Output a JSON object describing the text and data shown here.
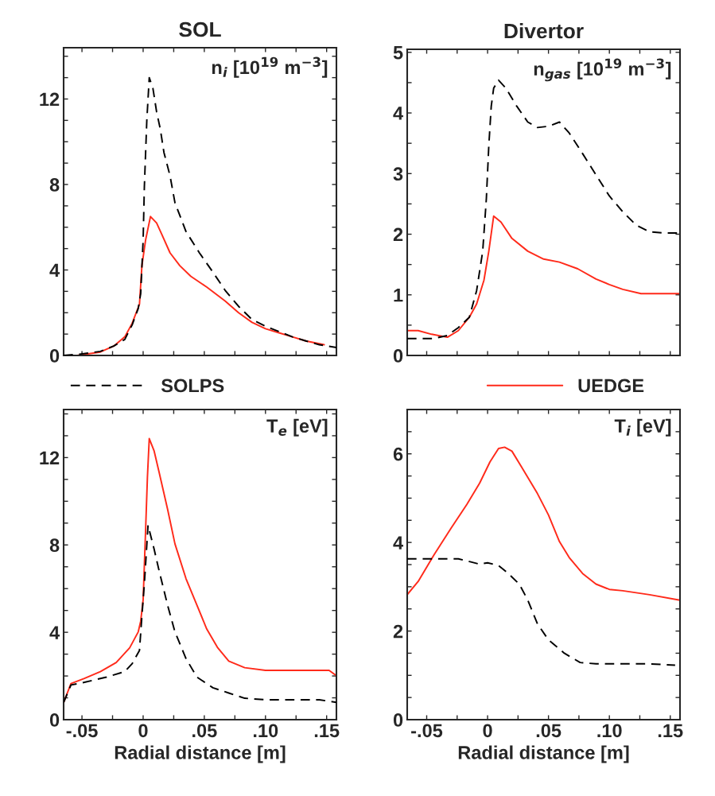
{
  "chart_data": [
    {
      "type": "line",
      "title": "SOL",
      "annotations": [
        "n$_{i}$ [10$^{19}$ m$^{−3}$]"
      ],
      "xlim": [
        -0.065,
        0.158
      ],
      "ylim": [
        0,
        14.4
      ],
      "tick_labels": "y",
      "legend": "bottom",
      "xticks": [
        {
          "value": -0.05,
          "label": null
        },
        {
          "value": -0.025,
          "label": null
        },
        {
          "value": 0,
          "label": null
        },
        {
          "value": 0.025,
          "label": null
        },
        {
          "value": 0.05,
          "label": null
        },
        {
          "value": 0.075,
          "label": null
        },
        {
          "value": 0.1,
          "label": null
        },
        {
          "value": 0.125,
          "label": null
        },
        {
          "value": 0.15,
          "label": null
        }
      ],
      "yticks": [
        0,
        {
          "value": 1,
          "label": null
        },
        {
          "value": 2,
          "label": null
        },
        {
          "value": 3,
          "label": null
        },
        4,
        {
          "value": 5,
          "label": null
        },
        {
          "value": 6,
          "label": null
        },
        {
          "value": 7,
          "label": null
        },
        8,
        {
          "value": 9,
          "label": null
        },
        {
          "value": 10,
          "label": null
        },
        {
          "value": 11,
          "label": null
        },
        12,
        {
          "value": 13,
          "label": null
        },
        {
          "value": 14,
          "label": null
        }
      ],
      "series": [
        {
          "name": "SOLPS",
          "color": "#000000",
          "line_style": "dashed",
          "x": [
            -0.065,
            -0.052,
            -0.035,
            -0.024,
            -0.015,
            -0.009,
            -0.004,
            -0.002,
            0.0,
            0.001,
            0.003,
            0.005,
            0.008,
            0.011,
            0.014,
            0.017,
            0.022,
            0.026,
            0.035,
            0.046,
            0.057,
            0.067,
            0.078,
            0.089,
            0.1,
            0.111,
            0.122,
            0.133,
            0.144,
            0.158
          ],
          "values": [
            0,
            0.06,
            0.19,
            0.44,
            0.75,
            1.43,
            2.2,
            2.9,
            5.4,
            7.9,
            11.0,
            13.0,
            12.5,
            11.4,
            10.6,
            9.5,
            8.4,
            7.15,
            5.8,
            4.8,
            3.9,
            3.05,
            2.3,
            1.68,
            1.37,
            1.12,
            0.87,
            0.68,
            0.5,
            0.37
          ]
        },
        {
          "name": "UEDGE",
          "color": "#ff2a1a",
          "line_style": "solid",
          "x": [
            -0.054,
            -0.035,
            -0.024,
            -0.015,
            -0.009,
            -0.003,
            -0.001,
            0.002,
            0.006,
            0.011,
            0.015,
            0.022,
            0.03,
            0.039,
            0.052,
            0.067,
            0.078,
            0.089,
            0.1,
            0.111,
            0.122,
            0.133,
            0.148
          ],
          "values": [
            0,
            0.16,
            0.44,
            0.87,
            1.5,
            2.4,
            4.2,
            5.4,
            6.5,
            6.2,
            5.7,
            4.8,
            4.2,
            3.7,
            3.2,
            2.55,
            2.0,
            1.55,
            1.25,
            1.06,
            0.87,
            0.68,
            0.5
          ]
        }
      ]
    },
    {
      "type": "line",
      "title": "Divertor",
      "annotations": [
        "n$_{gas}$ [10$^{19}$ m$^{−3}$]"
      ],
      "xlim": [
        -0.066,
        0.158
      ],
      "ylim": [
        0,
        5.05
      ],
      "tick_labels": "y",
      "xticks": [
        {
          "value": -0.05,
          "label": null
        },
        {
          "value": -0.025,
          "label": null
        },
        {
          "value": 0,
          "label": null
        },
        {
          "value": 0.025,
          "label": null
        },
        {
          "value": 0.05,
          "label": null
        },
        {
          "value": 0.075,
          "label": null
        },
        {
          "value": 0.1,
          "label": null
        },
        {
          "value": 0.125,
          "label": null
        },
        {
          "value": 0.15,
          "label": null
        }
      ],
      "yticks": [
        0,
        {
          "value": 0.5,
          "label": null
        },
        1,
        {
          "value": 1.5,
          "label": null
        },
        2,
        {
          "value": 2.5,
          "label": null
        },
        3,
        {
          "value": 3.5,
          "label": null
        },
        4,
        {
          "value": 4.5,
          "label": null
        },
        5
      ],
      "series": [
        {
          "name": "SOLPS",
          "color": "#000000",
          "line_style": "dashed",
          "x": [
            -0.066,
            -0.044,
            -0.033,
            -0.024,
            -0.015,
            -0.009,
            -0.004,
            -0.001,
            0.001,
            0.003,
            0.005,
            0.009,
            0.015,
            0.024,
            0.033,
            0.041,
            0.05,
            0.059,
            0.067,
            0.078,
            0.089,
            0.1,
            0.111,
            0.122,
            0.133,
            0.144,
            0.157
          ],
          "values": [
            0.28,
            0.28,
            0.33,
            0.46,
            0.63,
            1.07,
            1.72,
            2.59,
            3.46,
            4.11,
            4.41,
            4.54,
            4.41,
            4.11,
            3.85,
            3.76,
            3.78,
            3.85,
            3.67,
            3.33,
            2.98,
            2.63,
            2.37,
            2.15,
            2.04,
            2.02,
            2.02
          ]
        },
        {
          "name": "UEDGE",
          "color": "#ff2a1a",
          "line_style": "solid",
          "x": [
            -0.066,
            -0.057,
            -0.046,
            -0.033,
            -0.024,
            -0.015,
            -0.009,
            -0.003,
            0.001,
            0.005,
            0.011,
            0.02,
            0.033,
            0.046,
            0.059,
            0.074,
            0.089,
            0.1,
            0.111,
            0.126,
            0.157
          ],
          "values": [
            0.41,
            0.41,
            0.35,
            0.3,
            0.41,
            0.63,
            0.85,
            1.24,
            1.72,
            2.3,
            2.2,
            1.93,
            1.72,
            1.59,
            1.54,
            1.43,
            1.26,
            1.17,
            1.09,
            1.02,
            1.02
          ]
        }
      ]
    },
    {
      "type": "line",
      "xlabel": "Radial distance [m]",
      "annotations": [
        "T$_{e}$ [eV]"
      ],
      "xlim": [
        -0.065,
        0.158
      ],
      "ylim": [
        0,
        14.2
      ],
      "xticks": [
        {
          "value": -0.05,
          "label": "-.05"
        },
        {
          "value": -0.025,
          "label": null
        },
        0,
        {
          "value": 0.025,
          "label": null
        },
        {
          "value": 0.05,
          "label": ".05"
        },
        {
          "value": 0.075,
          "label": null
        },
        {
          "value": 0.1,
          "label": ".10"
        },
        {
          "value": 0.125,
          "label": null
        },
        {
          "value": 0.15,
          "label": ".15"
        }
      ],
      "yticks": [
        0,
        {
          "value": 1,
          "label": null
        },
        {
          "value": 2,
          "label": null
        },
        {
          "value": 3,
          "label": null
        },
        4,
        {
          "value": 5,
          "label": null
        },
        {
          "value": 6,
          "label": null
        },
        {
          "value": 7,
          "label": null
        },
        8,
        {
          "value": 9,
          "label": null
        },
        {
          "value": 10,
          "label": null
        },
        {
          "value": 11,
          "label": null
        },
        12,
        {
          "value": 13,
          "label": null
        },
        {
          "value": 14,
          "label": null
        }
      ],
      "series": [
        {
          "name": "SOLPS",
          "color": "#000000",
          "line_style": "dashed",
          "x": [
            -0.065,
            -0.059,
            -0.048,
            -0.03,
            -0.015,
            -0.009,
            -0.003,
            -0.001,
            0.001,
            0.004,
            0.009,
            0.013,
            0.02,
            0.026,
            0.035,
            0.044,
            0.057,
            0.07,
            0.083,
            0.1,
            0.122,
            0.144,
            0.158
          ],
          "values": [
            0.79,
            1.59,
            1.71,
            1.95,
            2.2,
            2.56,
            3.17,
            4.76,
            6.22,
            8.9,
            7.8,
            6.83,
            5.24,
            4.02,
            2.8,
            1.95,
            1.46,
            1.22,
            0.98,
            0.91,
            0.91,
            0.91,
            0.79
          ]
        },
        {
          "name": "UEDGE",
          "color": "#ff2a1a",
          "line_style": "solid",
          "x": [
            -0.065,
            -0.059,
            -0.048,
            -0.035,
            -0.022,
            -0.011,
            -0.004,
            -0.002,
            0.0,
            0.002,
            0.0035,
            0.005,
            0.009,
            0.013,
            0.02,
            0.026,
            0.035,
            0.044,
            0.052,
            0.061,
            0.07,
            0.083,
            0.1,
            0.122,
            0.152,
            0.158
          ],
          "values": [
            0.79,
            1.65,
            1.89,
            2.2,
            2.62,
            3.29,
            4.02,
            4.51,
            5.49,
            8.66,
            11.1,
            12.87,
            12.3,
            11.34,
            9.63,
            8.05,
            6.46,
            5.24,
            4.15,
            3.29,
            2.68,
            2.38,
            2.26,
            2.26,
            2.26,
            2.01
          ]
        }
      ]
    },
    {
      "type": "line",
      "xlabel": "Radial distance [m]",
      "annotations": [
        "T$_{i}$ [eV]"
      ],
      "xlim": [
        -0.066,
        0.158
      ],
      "ylim": [
        0,
        7
      ],
      "xticks": [
        {
          "value": -0.05,
          "label": "-.05"
        },
        {
          "value": -0.025,
          "label": null
        },
        0,
        {
          "value": 0.025,
          "label": null
        },
        {
          "value": 0.05,
          "label": ".05"
        },
        {
          "value": 0.075,
          "label": null
        },
        {
          "value": 0.1,
          "label": ".10"
        },
        {
          "value": 0.125,
          "label": null
        },
        {
          "value": 0.15,
          "label": ".15"
        }
      ],
      "yticks": [
        0,
        {
          "value": 0.5,
          "label": null
        },
        {
          "value": 1,
          "label": null
        },
        {
          "value": 1.5,
          "label": null
        },
        2,
        {
          "value": 2.5,
          "label": null
        },
        {
          "value": 3,
          "label": null
        },
        {
          "value": 3.5,
          "label": null
        },
        4,
        {
          "value": 4.5,
          "label": null
        },
        {
          "value": 5,
          "label": null
        },
        {
          "value": 5.5,
          "label": null
        },
        6,
        {
          "value": 6.5,
          "label": null
        }
      ],
      "series": [
        {
          "name": "SOLPS",
          "color": "#000000",
          "line_style": "dashed",
          "x": [
            -0.066,
            -0.024,
            -0.015,
            -0.0065,
            0.0,
            0.009,
            0.017,
            0.026,
            0.033,
            0.041,
            0.05,
            0.063,
            0.076,
            0.089,
            0.111,
            0.133,
            0.154
          ],
          "values": [
            3.63,
            3.63,
            3.57,
            3.51,
            3.54,
            3.48,
            3.3,
            3.06,
            2.7,
            2.16,
            1.8,
            1.5,
            1.29,
            1.26,
            1.26,
            1.26,
            1.23
          ]
        },
        {
          "name": "UEDGE",
          "color": "#ff2a1a",
          "line_style": "solid",
          "x": [
            -0.066,
            -0.057,
            -0.044,
            -0.03,
            -0.017,
            -0.0065,
            0.002,
            0.009,
            0.014,
            0.02,
            0.028,
            0.041,
            0.05,
            0.059,
            0.067,
            0.078,
            0.089,
            0.1,
            0.111,
            0.133,
            0.157
          ],
          "values": [
            2.82,
            3.12,
            3.72,
            4.32,
            4.86,
            5.34,
            5.82,
            6.12,
            6.15,
            6.06,
            5.7,
            5.1,
            4.62,
            4.02,
            3.66,
            3.3,
            3.06,
            2.94,
            2.91,
            2.82,
            2.7
          ]
        }
      ]
    }
  ]
}
